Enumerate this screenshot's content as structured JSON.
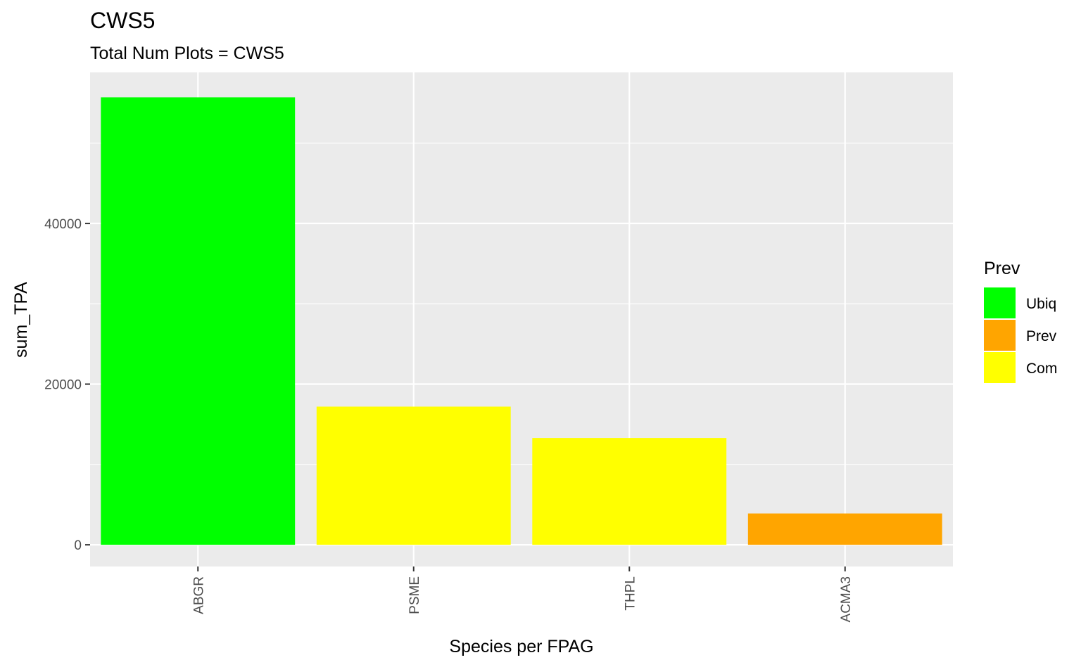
{
  "chart_data": {
    "type": "bar",
    "title": "CWS5",
    "subtitle": "Total Num Plots = CWS5",
    "xlabel": "Species per FPAG",
    "ylabel": "sum_TPA",
    "categories": [
      "ABGR",
      "PSME",
      "THPL",
      "ACMA3"
    ],
    "values": [
      55700,
      17200,
      13300,
      3900
    ],
    "bar_groups": [
      "Ubiq",
      "Com",
      "Com",
      "Prev"
    ],
    "ylim": [
      -2700,
      58800
    ],
    "yticks": [
      0,
      20000,
      40000
    ],
    "ytick_labels": [
      "0",
      "20000",
      "40000"
    ],
    "grid": true,
    "legend": {
      "title": "Prev",
      "position": "right",
      "entries": [
        {
          "label": "Ubiq",
          "color": "#00ff00"
        },
        {
          "label": "Prev",
          "color": "#ffa500"
        },
        {
          "label": "Com",
          "color": "#ffff00"
        }
      ]
    },
    "colors": {
      "panel": "#ebebeb",
      "grid": "#ffffff",
      "tick": "#333333"
    }
  }
}
